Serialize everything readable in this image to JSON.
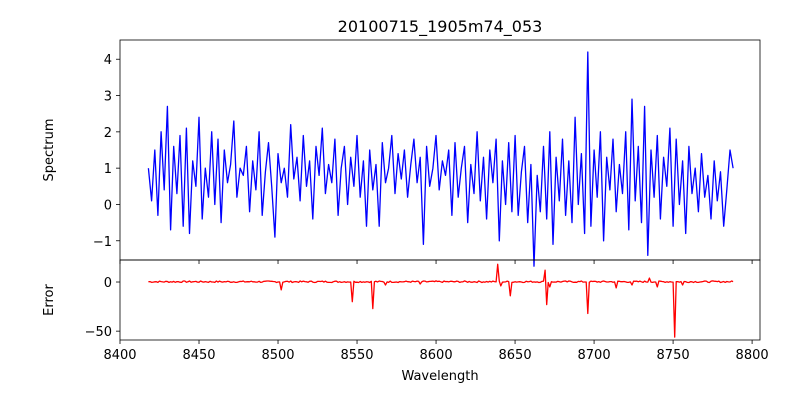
{
  "chart_data": [
    {
      "type": "line",
      "title": "20100715_1905m74_053",
      "ylabel": "Spectrum",
      "xlabel": "",
      "xlim": [
        8400,
        8805
      ],
      "ylim": [
        -1.53,
        4.53
      ],
      "xticks": [
        8400,
        8450,
        8500,
        8550,
        8600,
        8650,
        8700,
        8750,
        8800
      ],
      "yticks": [
        -1,
        0,
        1,
        2,
        3,
        4
      ],
      "ytick_labels": [
        "−1",
        "0",
        "1",
        "2",
        "3",
        "4"
      ],
      "color": "#0000ff",
      "x_start": 8418,
      "x_step": 2,
      "values": [
        1.0,
        0.1,
        1.5,
        -0.3,
        2.0,
        0.4,
        2.7,
        -0.7,
        1.6,
        0.3,
        1.9,
        -0.6,
        2.1,
        -0.8,
        1.2,
        0.5,
        2.4,
        -0.4,
        1.0,
        0.2,
        2.0,
        0.0,
        1.8,
        -0.5,
        1.5,
        0.6,
        1.1,
        2.3,
        0.2,
        1.0,
        0.8,
        1.6,
        -0.2,
        1.2,
        0.4,
        2.0,
        -0.3,
        0.9,
        1.7,
        0.5,
        -0.9,
        1.4,
        0.6,
        1.0,
        0.2,
        2.2,
        0.7,
        1.3,
        0.1,
        1.9,
        0.5,
        1.2,
        -0.4,
        1.6,
        0.8,
        2.1,
        0.3,
        1.1,
        0.6,
        1.8,
        -0.3,
        1.0,
        1.6,
        0.0,
        1.3,
        0.5,
        1.9,
        0.2,
        1.2,
        -0.6,
        1.5,
        0.4,
        1.1,
        -0.6,
        1.7,
        0.6,
        1.0,
        1.9,
        0.3,
        1.4,
        0.7,
        1.5,
        0.2,
        1.1,
        1.8,
        0.6,
        1.3,
        -1.1,
        1.6,
        0.5,
        1.0,
        1.9,
        0.4,
        1.2,
        0.8,
        1.5,
        -0.3,
        1.7,
        0.2,
        1.0,
        1.6,
        -0.5,
        1.1,
        0.3,
        2.0,
        0.1,
        1.3,
        -0.4,
        1.5,
        0.6,
        1.8,
        -1.0,
        1.2,
        0.0,
        1.7,
        -0.2,
        1.9,
        -0.3,
        0.9,
        1.6,
        -0.5,
        1.1,
        -1.7,
        0.8,
        -0.2,
        1.6,
        -0.4,
        2.0,
        -1.1,
        1.3,
        0.1,
        1.8,
        -0.3,
        1.2,
        -0.5,
        2.4,
        0.0,
        1.4,
        -0.8,
        4.2,
        -0.6,
        1.5,
        0.2,
        2.0,
        -1.0,
        1.3,
        0.4,
        1.8,
        -0.2,
        1.1,
        0.3,
        2.0,
        -0.7,
        2.9,
        0.1,
        1.6,
        -0.5,
        2.7,
        -1.4,
        1.5,
        0.2,
        1.9,
        -0.4,
        1.3,
        0.5,
        2.1,
        -0.6,
        1.8,
        0.0,
        1.2,
        -0.8,
        1.6,
        0.3,
        1.0,
        -0.2,
        1.4,
        0.2,
        0.8,
        -0.4,
        1.2,
        0.1,
        0.9,
        -0.6,
        0.4,
        1.5,
        1.0
      ]
    },
    {
      "type": "line",
      "ylabel": "Error",
      "xlabel": "Wavelength",
      "xlim": [
        8400,
        8805
      ],
      "ylim": [
        -59,
        22.4
      ],
      "xticks": [
        8400,
        8450,
        8500,
        8550,
        8600,
        8650,
        8700,
        8750,
        8800
      ],
      "xtick_labels": [
        "8400",
        "8450",
        "8500",
        "8550",
        "8600",
        "8650",
        "8700",
        "8750",
        "8800"
      ],
      "yticks": [
        0,
        -50
      ],
      "ytick_labels": [
        "0",
        "−50"
      ],
      "color": "#ff0000",
      "x_range": [
        8418,
        8788
      ],
      "baseline": 0.3,
      "features": [
        [
          8502,
          -8
        ],
        [
          8547,
          -20
        ],
        [
          8560,
          -27
        ],
        [
          8568,
          -3
        ],
        [
          8590,
          -2
        ],
        [
          8639,
          18
        ],
        [
          8641,
          -4
        ],
        [
          8647,
          -14
        ],
        [
          8669,
          12
        ],
        [
          8670,
          -23
        ],
        [
          8672,
          -5
        ],
        [
          8696,
          -32
        ],
        [
          8714,
          -6
        ],
        [
          8724,
          -3
        ],
        [
          8735,
          4
        ],
        [
          8740,
          -5
        ],
        [
          8751,
          -56
        ],
        [
          8756,
          -3
        ]
      ]
    }
  ]
}
